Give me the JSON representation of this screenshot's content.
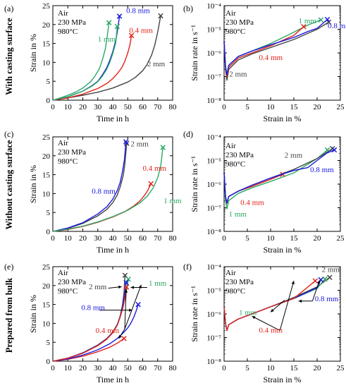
{
  "figure": {
    "row_labels": [
      "With casting surface",
      "Without casting surface",
      "Prepared from bulk"
    ],
    "condition_lines": [
      "Air",
      "230 MPa",
      "980°C"
    ],
    "colors": {
      "2 mm": "#444444",
      "1 mm": "#2aa866",
      "0.8 mm": "#1a1adf",
      "0.4 mm": "#e2231a"
    }
  },
  "chart_data": [
    {
      "id": "a",
      "panel_label": "(a)",
      "type": "line",
      "xlabel": "Time in h",
      "ylabel": "Strain in %",
      "xlim": [
        0,
        80
      ],
      "ylim": [
        0,
        25
      ],
      "xticks": [
        "0",
        "10",
        "20",
        "30",
        "40",
        "50",
        "60",
        "70",
        "80"
      ],
      "yticks": [
        "0",
        "5",
        "10",
        "15",
        "20",
        "25"
      ],
      "series": [
        {
          "name": "2 mm",
          "color": "#444444",
          "x": [
            0,
            10,
            20,
            30,
            40,
            50,
            55,
            60,
            63,
            66,
            68,
            70,
            72
          ],
          "y": [
            0,
            0.6,
            1.3,
            2.1,
            3.2,
            4.8,
            6.0,
            7.8,
            9.5,
            12.0,
            14.5,
            18.0,
            22.3
          ]
        },
        {
          "name": "1 mm",
          "color": "#2aa866",
          "x": [
            0,
            5,
            10,
            15,
            20,
            25,
            28,
            31,
            33,
            35,
            36,
            37.5
          ],
          "y": [
            0,
            0.6,
            1.3,
            2.1,
            3.2,
            4.8,
            6.3,
            8.3,
            10.5,
            13.5,
            16.0,
            20.5
          ]
        },
        {
          "name": "0.8 mm",
          "color": "#1a1adf",
          "x": [
            0,
            10,
            20,
            26,
            30,
            33,
            36,
            38,
            40,
            42,
            43,
            44.5
          ],
          "y": [
            0,
            0.9,
            2.4,
            3.8,
            5.0,
            6.6,
            8.6,
            10.5,
            12.8,
            15.8,
            18.0,
            22.2
          ]
        },
        {
          "name": "0.4 mm",
          "color": "#e2231a",
          "x": [
            0,
            10,
            20,
            30,
            36,
            40,
            43,
            46,
            48,
            50,
            51.5,
            52.5
          ],
          "y": [
            0,
            0.6,
            1.6,
            3.1,
            4.4,
            5.7,
            7.0,
            8.6,
            10.2,
            12.5,
            14.6,
            17.1
          ]
        },
        {
          "name": "1 mm",
          "color": "#2aa866",
          "x": [
            0,
            10,
            20,
            26,
            30,
            33,
            36,
            38,
            40,
            42,
            43
          ],
          "y": [
            0,
            0.9,
            2.4,
            3.7,
            4.9,
            6.3,
            8.2,
            10.0,
            12.3,
            15.2,
            19.5
          ]
        }
      ],
      "annotations": [
        {
          "text": "0.8 mm",
          "color": "#1a1adf"
        },
        {
          "text": "0.4 mm",
          "color": "#e2231a"
        },
        {
          "text": "1 mm",
          "color": "#2aa866"
        },
        {
          "text": "2 mm",
          "color": "#444444"
        }
      ]
    },
    {
      "id": "b",
      "panel_label": "(b)",
      "type": "line",
      "yscale": "log",
      "xlabel": "Strain in %",
      "ylabel": "Strain rate in s⁻¹",
      "xlim": [
        0,
        25
      ],
      "ylim": [
        1e-08,
        0.0001
      ],
      "xticks": [
        "0",
        "5",
        "10",
        "15",
        "20",
        "25"
      ],
      "yticks": [
        "10⁻⁸",
        "10⁻⁷",
        "10⁻⁶",
        "10⁻⁵",
        "10⁻⁴"
      ],
      "series": [
        {
          "name": "2 mm",
          "color": "#444444",
          "x": [
            0,
            0.3,
            0.6,
            1,
            3,
            6,
            10,
            15,
            20,
            22.5
          ],
          "y": [
            3e-06,
            2e-07,
            7e-08,
            2e-07,
            5e-07,
            9e-07,
            1.7e-06,
            3.7e-06,
            1e-05,
            2e-05
          ]
        },
        {
          "name": "1 mm",
          "color": "#2aa866",
          "x": [
            0,
            0.3,
            0.6,
            1,
            3,
            6,
            10,
            14,
            18,
            20.8
          ],
          "y": [
            3e-06,
            3e-07,
            1.2e-07,
            3e-07,
            7e-07,
            1.2e-06,
            2.5e-06,
            6e-06,
            1.5e-05,
            2.5e-05
          ]
        },
        {
          "name": "0.4 mm",
          "color": "#e2231a",
          "x": [
            0,
            0.3,
            0.6,
            1,
            3,
            6,
            10,
            15,
            17.1
          ],
          "y": [
            3e-06,
            2.5e-07,
            1e-07,
            2.5e-07,
            6e-07,
            1e-06,
            2e-06,
            5.5e-06,
            1.3e-05
          ]
        },
        {
          "name": "0.8 mm",
          "color": "#1a1adf",
          "x": [
            0,
            0.3,
            0.6,
            1,
            3,
            6,
            10,
            15,
            18,
            20,
            22.2
          ],
          "y": [
            3e-06,
            2.5e-07,
            1.2e-07,
            3e-07,
            7e-07,
            1.2e-06,
            2.2e-06,
            4.5e-06,
            8e-06,
            1.1e-05,
            2.6e-05
          ]
        }
      ],
      "annotations": [
        {
          "text": "1 mm",
          "color": "#2aa866"
        },
        {
          "text": "0.8 mm",
          "color": "#1a1adf"
        },
        {
          "text": "0.4 mm",
          "color": "#e2231a"
        },
        {
          "text": "2 mm",
          "color": "#444444"
        }
      ]
    },
    {
      "id": "c",
      "panel_label": "(c)",
      "type": "line",
      "xlabel": "Time in h",
      "ylabel": "Strain in %",
      "xlim": [
        0,
        80
      ],
      "ylim": [
        0,
        25
      ],
      "xticks": [
        "0",
        "10",
        "20",
        "30",
        "40",
        "50",
        "60",
        "70",
        "80"
      ],
      "yticks": [
        "0",
        "5",
        "10",
        "15",
        "20",
        "25"
      ],
      "series": [
        {
          "name": "2 mm",
          "color": "#444444",
          "x": [
            0,
            10,
            20,
            30,
            36,
            40,
            43,
            45,
            47,
            48,
            49.3
          ],
          "y": [
            0,
            0.8,
            2.1,
            4.1,
            5.8,
            7.6,
            9.6,
            11.8,
            14.8,
            17.5,
            23.3
          ]
        },
        {
          "name": "0.8 mm",
          "color": "#1a1adf",
          "x": [
            0,
            10,
            20,
            30,
            36,
            40,
            43,
            45,
            46.5,
            47.8,
            48.8
          ],
          "y": [
            0,
            0.9,
            2.3,
            4.6,
            6.5,
            8.5,
            10.8,
            13.0,
            15.8,
            19.0,
            23.7
          ]
        },
        {
          "name": "0.4 mm",
          "color": "#e2231a",
          "x": [
            0,
            10,
            20,
            30,
            40,
            48,
            54,
            58,
            61,
            63.5,
            65.5
          ],
          "y": [
            0,
            0.5,
            1.3,
            2.4,
            3.8,
            5.2,
            6.7,
            8.0,
            9.4,
            10.9,
            12.6
          ]
        },
        {
          "name": "1 mm",
          "color": "#2aa866",
          "x": [
            0,
            10,
            20,
            30,
            40,
            50,
            58,
            63,
            67,
            70,
            72,
            73.5
          ],
          "y": [
            0,
            0.6,
            1.4,
            2.5,
            3.9,
            5.6,
            7.5,
            9.3,
            11.5,
            14.2,
            17.2,
            22.2
          ]
        }
      ],
      "annotations": [
        {
          "text": "2 mm",
          "color": "#444444"
        },
        {
          "text": "0.8 mm",
          "color": "#1a1adf"
        },
        {
          "text": "0.4 mm",
          "color": "#e2231a"
        },
        {
          "text": "1 mm",
          "color": "#2aa866"
        }
      ]
    },
    {
      "id": "d",
      "panel_label": "(d)",
      "type": "line",
      "yscale": "log",
      "xlabel": "Strain in %",
      "ylabel": "Strain rate in s⁻¹",
      "xlim": [
        0,
        25
      ],
      "ylim": [
        1e-08,
        0.0001
      ],
      "xticks": [
        "0",
        "5",
        "10",
        "15",
        "20",
        "25"
      ],
      "yticks": [
        "10⁻⁸",
        "10⁻⁷",
        "10⁻⁶",
        "10⁻⁵",
        "10⁻⁴"
      ],
      "series": [
        {
          "name": "1 mm",
          "color": "#2aa866",
          "x": [
            0,
            0.3,
            0.6,
            1,
            3,
            6,
            10,
            15,
            20,
            22.2
          ],
          "y": [
            3e-06,
            2e-07,
            9e-08,
            2e-07,
            4e-07,
            7e-07,
            1.3e-06,
            3e-06,
            1.2e-05,
            2.8e-05
          ]
        },
        {
          "name": "0.4 mm",
          "color": "#e2231a",
          "x": [
            0,
            0.3,
            0.6,
            1,
            3,
            6,
            10,
            12.6
          ],
          "y": [
            3e-06,
            3e-07,
            1.5e-07,
            3e-07,
            5e-07,
            8e-07,
            1.6e-06,
            2.6e-06
          ]
        },
        {
          "name": "2 mm",
          "color": "#444444",
          "x": [
            0,
            0.3,
            0.6,
            1,
            3,
            6,
            10,
            15,
            20,
            23.3
          ],
          "y": [
            3e-06,
            3e-07,
            1.6e-07,
            3e-07,
            5e-07,
            9e-07,
            1.8e-06,
            4.2e-06,
            1.2e-05,
            3.2e-05
          ]
        },
        {
          "name": "0.8 mm",
          "color": "#1a1adf",
          "x": [
            0,
            0.3,
            0.6,
            1,
            3,
            6,
            10,
            15,
            18,
            20,
            22,
            23.7
          ],
          "y": [
            3e-06,
            3e-07,
            1.6e-07,
            3e-07,
            5e-07,
            9e-07,
            1.8e-06,
            3.8e-06,
            5e-06,
            1e-05,
            2e-05,
            2.8e-05
          ]
        }
      ],
      "annotations": [
        {
          "text": "2 mm",
          "color": "#444444"
        },
        {
          "text": "0.8 mm",
          "color": "#1a1adf"
        },
        {
          "text": "0.4 mm",
          "color": "#e2231a"
        },
        {
          "text": "1 mm",
          "color": "#2aa866"
        }
      ]
    },
    {
      "id": "e",
      "panel_label": "(e)",
      "type": "line",
      "xlabel": "Time in h",
      "ylabel": "Strain in %",
      "xlim": [
        0,
        80
      ],
      "ylim": [
        0,
        25
      ],
      "xticks": [
        "0",
        "10",
        "20",
        "30",
        "40",
        "50",
        "60",
        "70",
        "80"
      ],
      "yticks": [
        "0",
        "5",
        "10",
        "15",
        "20",
        "25"
      ],
      "series": [
        {
          "name": "0.4 mm",
          "color": "#e2231a",
          "x": [
            0,
            10,
            20,
            30,
            38,
            44,
            47.5
          ],
          "y": [
            0,
            0.5,
            1.3,
            2.5,
            3.7,
            5.0,
            6.0
          ]
        },
        {
          "name": "0.8 mm",
          "color": "#1a1adf",
          "x": [
            0,
            10,
            20,
            30,
            38,
            43,
            47,
            50,
            52,
            54,
            55.5,
            57
          ],
          "y": [
            0,
            0.6,
            1.6,
            3.0,
            4.6,
            6.0,
            7.5,
            8.8,
            10.0,
            11.6,
            13.1,
            15.0
          ]
        },
        {
          "name": "2 mm",
          "color": "#444444",
          "x": [
            0,
            10,
            20,
            30,
            36,
            40,
            43,
            45,
            46.5,
            47.5,
            48.2
          ],
          "y": [
            0,
            0.8,
            2.2,
            4.3,
            6.0,
            7.7,
            9.7,
            12.0,
            14.8,
            18.0,
            22.7
          ]
        },
        {
          "name": "1 mm",
          "color": "#2aa866",
          "x": [
            0,
            10,
            20,
            30,
            36,
            40,
            43,
            45,
            47,
            48.5,
            49.5,
            50.4
          ],
          "y": [
            0,
            0.8,
            2.1,
            4.2,
            5.9,
            7.6,
            9.6,
            11.8,
            14.6,
            17.2,
            19.5,
            21.7
          ]
        },
        {
          "name": "0.8 mm",
          "color": "#1a1adf",
          "x": [
            0,
            10,
            20,
            30,
            36,
            40,
            43,
            45,
            46.5,
            47.8,
            49
          ],
          "y": [
            0,
            0.8,
            2.2,
            4.2,
            5.9,
            7.6,
            9.6,
            11.8,
            14.5,
            17.3,
            20.8
          ]
        },
        {
          "name": "0.4 mm",
          "color": "#e2231a",
          "x": [
            0,
            10,
            20,
            30,
            36,
            40,
            43,
            45,
            47,
            48.5,
            49.2
          ],
          "y": [
            0,
            0.8,
            2.1,
            4.1,
            5.8,
            7.5,
            9.5,
            11.7,
            14.5,
            17.5,
            19.6
          ]
        }
      ],
      "annotations": [
        {
          "text": "2 mm",
          "color": "#444444"
        },
        {
          "text": "1 mm",
          "color": "#2aa866"
        },
        {
          "text": "0.8 mm",
          "color": "#1a1adf"
        },
        {
          "text": "0.4 mm",
          "color": "#e2231a"
        }
      ]
    },
    {
      "id": "f",
      "panel_label": "(f)",
      "type": "line",
      "yscale": "log",
      "xlabel": "Strain in %",
      "ylabel": "Strain rate in s⁻¹",
      "xlim": [
        0,
        25
      ],
      "ylim": [
        1e-08,
        0.0001
      ],
      "xticks": [
        "0",
        "5",
        "10",
        "15",
        "20",
        "25"
      ],
      "yticks": [
        "10⁻⁸",
        "10⁻⁷",
        "10⁻⁶",
        "10⁻⁵",
        "10⁻⁴"
      ],
      "series": [
        {
          "name": "2 mm",
          "color": "#444444",
          "x": [
            0,
            0.3,
            0.6,
            1,
            3,
            6,
            10,
            15,
            20,
            22.7
          ],
          "y": [
            2e-06,
            4e-07,
            2e-07,
            3.5e-07,
            6e-07,
            1e-06,
            2e-06,
            5e-06,
            1.4e-05,
            3.5e-05
          ]
        },
        {
          "name": "1 mm",
          "color": "#2aa866",
          "x": [
            0,
            0.3,
            0.6,
            1,
            3,
            6,
            10,
            15,
            20,
            21.7
          ],
          "y": [
            2e-06,
            4e-07,
            2e-07,
            3.5e-07,
            6e-07,
            1e-06,
            2e-06,
            4.5e-06,
            1.2e-05,
            3e-05
          ]
        },
        {
          "name": "0.8 mm",
          "color": "#1a1adf",
          "x": [
            0,
            0.3,
            0.6,
            1,
            3,
            6,
            10,
            15,
            20,
            20.8
          ],
          "y": [
            2e-06,
            4e-07,
            2e-07,
            3.5e-07,
            6e-07,
            1e-06,
            2e-06,
            4.5e-06,
            1.3e-05,
            2.8e-05
          ]
        },
        {
          "name": "0.4 mm",
          "color": "#e2231a",
          "x": [
            0,
            0.3,
            0.6,
            1,
            3,
            6,
            10,
            15,
            19.6
          ],
          "y": [
            2e-06,
            4e-07,
            2e-07,
            3.5e-07,
            6e-07,
            1e-06,
            2e-06,
            4.5e-06,
            2.5e-05
          ]
        }
      ],
      "annotations": [
        {
          "text": "2 mm",
          "color": "#444444"
        },
        {
          "text": "1 mm",
          "color": "#2aa866"
        },
        {
          "text": "0.8 mm",
          "color": "#1a1adf"
        },
        {
          "text": "0.4 mm",
          "color": "#e2231a"
        }
      ]
    }
  ]
}
